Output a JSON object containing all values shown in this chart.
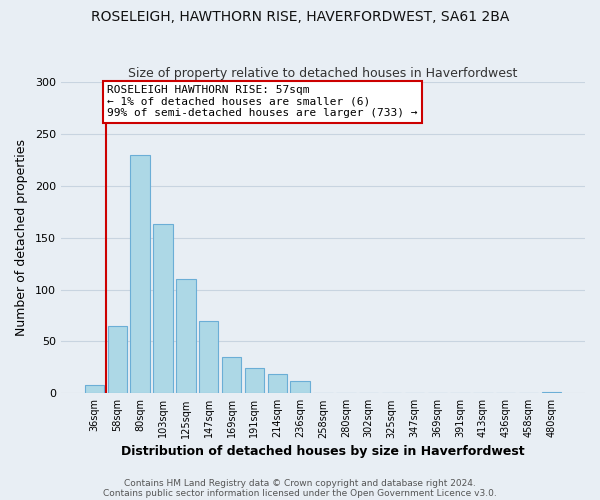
{
  "title": "ROSELEIGH, HAWTHORN RISE, HAVERFORDWEST, SA61 2BA",
  "subtitle": "Size of property relative to detached houses in Haverfordwest",
  "xlabel": "Distribution of detached houses by size in Haverfordwest",
  "ylabel": "Number of detached properties",
  "bar_labels": [
    "36sqm",
    "58sqm",
    "80sqm",
    "103sqm",
    "125sqm",
    "147sqm",
    "169sqm",
    "191sqm",
    "214sqm",
    "236sqm",
    "258sqm",
    "280sqm",
    "302sqm",
    "325sqm",
    "347sqm",
    "369sqm",
    "391sqm",
    "413sqm",
    "436sqm",
    "458sqm",
    "480sqm"
  ],
  "bar_values": [
    8,
    65,
    230,
    163,
    110,
    70,
    35,
    24,
    19,
    12,
    0,
    0,
    0,
    0,
    0,
    0,
    0,
    0,
    0,
    0,
    1
  ],
  "bar_color": "#add8e6",
  "bar_edge_color": "#6baed6",
  "bg_color": "#e8eef4",
  "ylim": [
    0,
    300
  ],
  "yticks": [
    0,
    50,
    100,
    150,
    200,
    250,
    300
  ],
  "annotation_title": "ROSELEIGH HAWTHORN RISE: 57sqm",
  "annotation_line1": "← 1% of detached houses are smaller (6)",
  "annotation_line2": "99% of semi-detached houses are larger (733) →",
  "annotation_box_color": "#ffffff",
  "annotation_box_edge": "#cc0000",
  "property_line_color": "#cc0000",
  "grid_color": "#c8d4e0",
  "footer1": "Contains HM Land Registry data © Crown copyright and database right 2024.",
  "footer2": "Contains public sector information licensed under the Open Government Licence v3.0."
}
